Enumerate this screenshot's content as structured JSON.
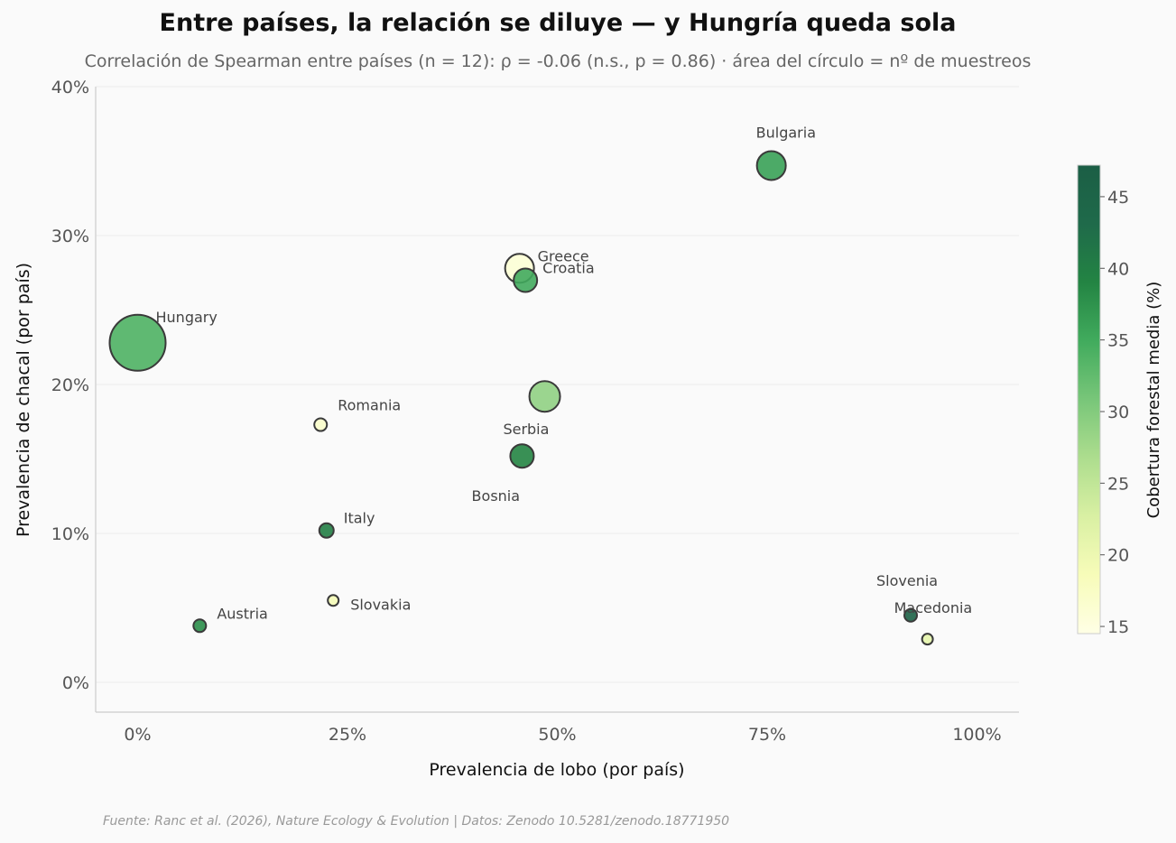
{
  "chart_data": {
    "type": "scatter",
    "title": "Entre países, la relación se diluye — y Hungría queda sola",
    "subtitle": "Correlación de Spearman entre países (n = 12): ρ = -0.06 (n.s., p = 0.86) · área del círculo = nº de muestreos",
    "xlabel": "Prevalencia de lobo (por país)",
    "ylabel": "Prevalencia de chacal (por país)",
    "colorbar_label": "Cobertura forestal media (%)",
    "source": "Fuente: Ranc et al. (2026), Nature Ecology & Evolution | Datos: Zenodo 10.5281/zenodo.18771950",
    "xlim": [
      -0.05,
      1.05
    ],
    "ylim": [
      -0.02,
      0.4
    ],
    "x_ticks": [
      {
        "value": 0,
        "label": "0%"
      },
      {
        "value": 0.25,
        "label": "25%"
      },
      {
        "value": 0.5,
        "label": "50%"
      },
      {
        "value": 0.75,
        "label": "75%"
      },
      {
        "value": 1.0,
        "label": "100%"
      }
    ],
    "y_ticks": [
      {
        "value": 0,
        "label": "0%"
      },
      {
        "value": 0.1,
        "label": "10%"
      },
      {
        "value": 0.2,
        "label": "20%"
      },
      {
        "value": 0.3,
        "label": "30%"
      },
      {
        "value": 0.4,
        "label": "40%"
      }
    ],
    "grid": "horizontal",
    "colorbar": {
      "min": 14.5,
      "max": 47.2,
      "ticks": [
        {
          "value": 15,
          "label": "15"
        },
        {
          "value": 20,
          "label": "20"
        },
        {
          "value": 25,
          "label": "25"
        },
        {
          "value": 30,
          "label": "30"
        },
        {
          "value": 35,
          "label": "35"
        },
        {
          "value": 40,
          "label": "40"
        },
        {
          "value": 45,
          "label": "45"
        }
      ],
      "stops": [
        "#ffffe5",
        "#f7fcb9",
        "#d9f0a3",
        "#addd8e",
        "#78c679",
        "#41ab5d",
        "#238443",
        "#1f6a4a",
        "#1b5e45"
      ]
    },
    "points": [
      {
        "country": "Hungary",
        "wolf": 0.0,
        "jackal": 0.228,
        "forest": 34,
        "label": "Hungary"
      },
      {
        "country": "Bulgaria",
        "wolf": 0.755,
        "jackal": 0.347,
        "forest": 36,
        "label": "Bulgaria"
      },
      {
        "country": "Greece",
        "wolf": 0.455,
        "jackal": 0.278,
        "forest": 16,
        "label": "Greece"
      },
      {
        "country": "Croatia",
        "wolf": 0.462,
        "jackal": 0.27,
        "forest": 35,
        "label": "Croatia"
      },
      {
        "country": "Bosnia",
        "wolf": 0.485,
        "jackal": 0.192,
        "forest": 29,
        "label": "Bosnia"
      },
      {
        "country": "Serbia",
        "wolf": 0.458,
        "jackal": 0.152,
        "forest": 39,
        "label": "Serbia"
      },
      {
        "country": "Romania",
        "wolf": 0.218,
        "jackal": 0.173,
        "forest": 17,
        "label": "Romania"
      },
      {
        "country": "Italy",
        "wolf": 0.225,
        "jackal": 0.102,
        "forest": 40,
        "label": "Italy"
      },
      {
        "country": "Slovakia",
        "wolf": 0.233,
        "jackal": 0.055,
        "forest": 19,
        "label": "Slovakia"
      },
      {
        "country": "Austria",
        "wolf": 0.074,
        "jackal": 0.038,
        "forest": 38,
        "label": "Austria"
      },
      {
        "country": "Slovenia",
        "wolf": 0.921,
        "jackal": 0.045,
        "forest": 46,
        "label": "Slovenia"
      },
      {
        "country": "Macedonia",
        "wolf": 0.941,
        "jackal": 0.029,
        "forest": 21,
        "label": "Macedonia"
      }
    ]
  }
}
